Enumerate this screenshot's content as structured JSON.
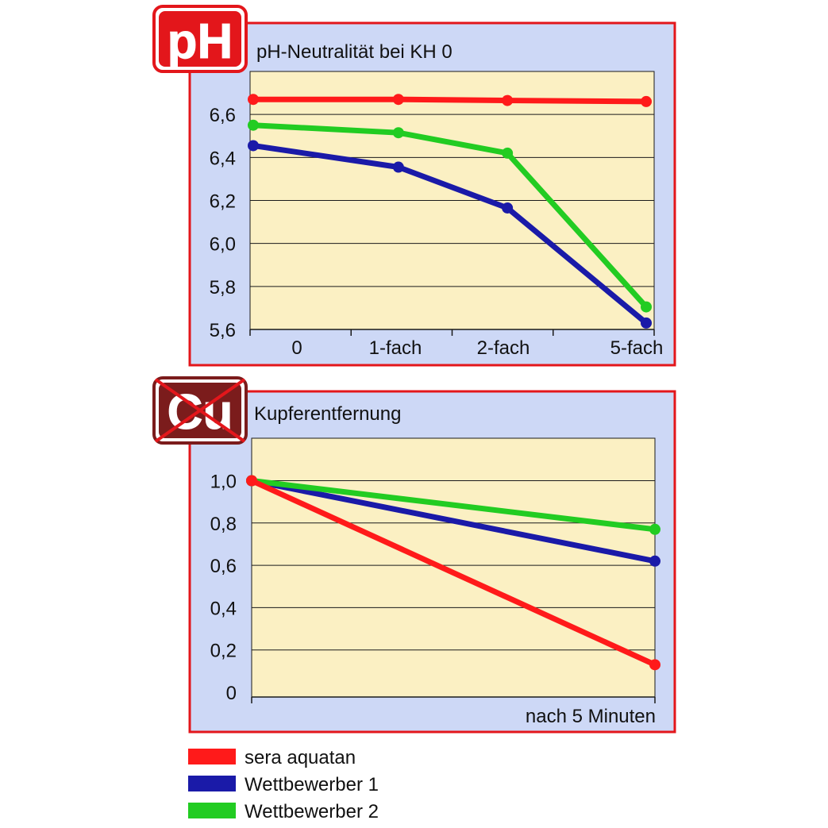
{
  "badges": {
    "ph": {
      "text": "pH",
      "color": "#e3161b"
    },
    "cu": {
      "text": "Cu",
      "color": "#7b1c1c"
    }
  },
  "colors": {
    "panel_border": "#e3161b",
    "panel_fill": "#cdd8f6",
    "plot_fill": "#fbf0c3",
    "grid": "#1a1a1a"
  },
  "legend": [
    {
      "label": "sera aquatan",
      "color": "#ff1a1a"
    },
    {
      "label": "Wettbewerber 1",
      "color": "#1a1aa8"
    },
    {
      "label": "Wettbewerber 2",
      "color": "#22cc22"
    }
  ],
  "chart_data": [
    {
      "type": "line",
      "title": "pH-Neutralität bei KH 0",
      "categories": [
        "0",
        "1-fach",
        "2-fach",
        "5-fach"
      ],
      "yticks": [
        "6,6",
        "6,4",
        "6,2",
        "6,0",
        "5,8",
        "5,6"
      ],
      "ylim": [
        5.6,
        6.8
      ],
      "grid": true,
      "series": [
        {
          "name": "sera aquatan",
          "values": [
            6.67,
            6.67,
            6.665,
            6.66
          ]
        },
        {
          "name": "Wettbewerber 1",
          "values": [
            6.455,
            6.355,
            6.165,
            5.63
          ]
        },
        {
          "name": "Wettbewerber 2",
          "values": [
            6.55,
            6.515,
            6.42,
            5.705
          ]
        }
      ]
    },
    {
      "type": "line",
      "title": "Kupferentfernung",
      "categories": [
        "",
        "nach 5 Minuten"
      ],
      "yticks": [
        "1,0",
        "0,8",
        "0,6",
        "0,4",
        "0,2",
        "0"
      ],
      "ylim": [
        0,
        1.2
      ],
      "grid": true,
      "series": [
        {
          "name": "sera aquatan",
          "values": [
            1.0,
            0.13
          ]
        },
        {
          "name": "Wettbewerber 1",
          "values": [
            1.0,
            0.62
          ]
        },
        {
          "name": "Wettbewerber 2",
          "values": [
            1.0,
            0.77
          ]
        }
      ]
    }
  ]
}
